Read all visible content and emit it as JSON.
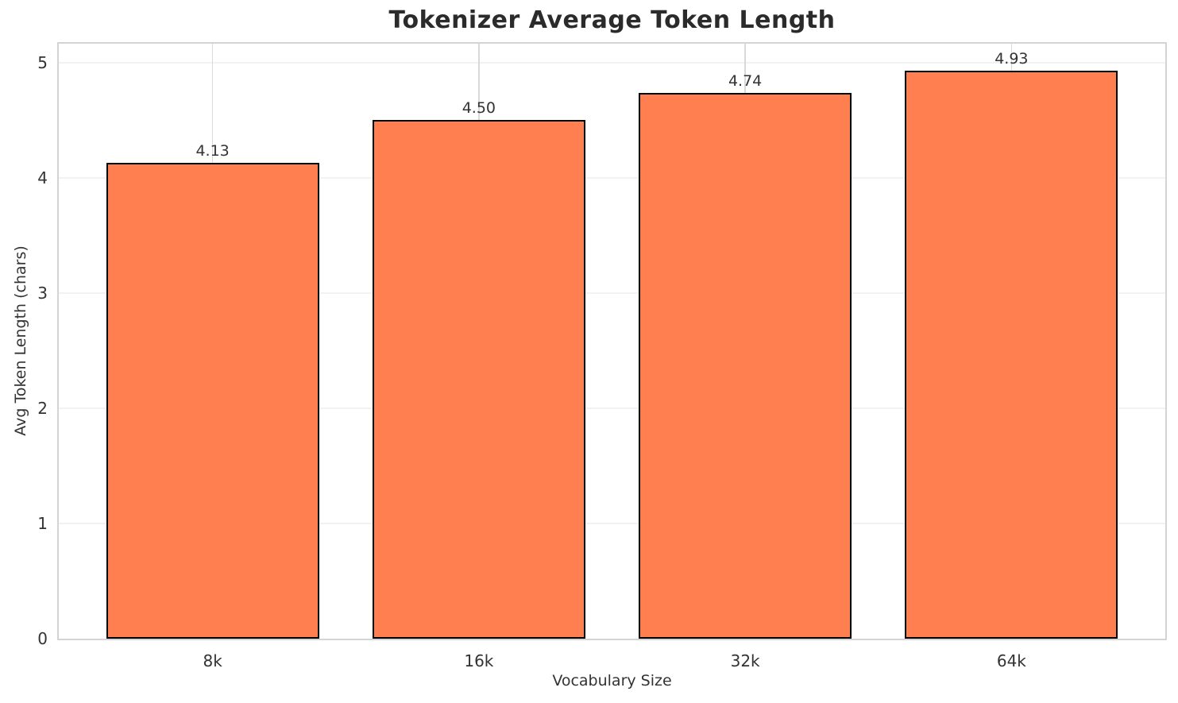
{
  "chart_data": {
    "type": "bar",
    "title": "Tokenizer Average Token Length",
    "xlabel": "Vocabulary Size",
    "ylabel": "Avg Token Length (chars)",
    "categories": [
      "8k",
      "16k",
      "32k",
      "64k"
    ],
    "values": [
      4.13,
      4.5,
      4.74,
      4.93
    ],
    "value_labels": [
      "4.13",
      "4.50",
      "4.74",
      "4.93"
    ],
    "yticks": [
      0,
      1,
      2,
      3,
      4,
      5
    ],
    "ylim": [
      0,
      5.165
    ],
    "grid": true,
    "legend": false,
    "colors": {
      "bar_fill": "#FF7F50",
      "bar_edge": "#000000",
      "hgrid": "#F2F2F2",
      "vgrid": "#D9D9D9",
      "frame": "#D4D4D4",
      "text": "#333333",
      "title": "#2B2B2B",
      "background": "#FFFFFF"
    }
  }
}
